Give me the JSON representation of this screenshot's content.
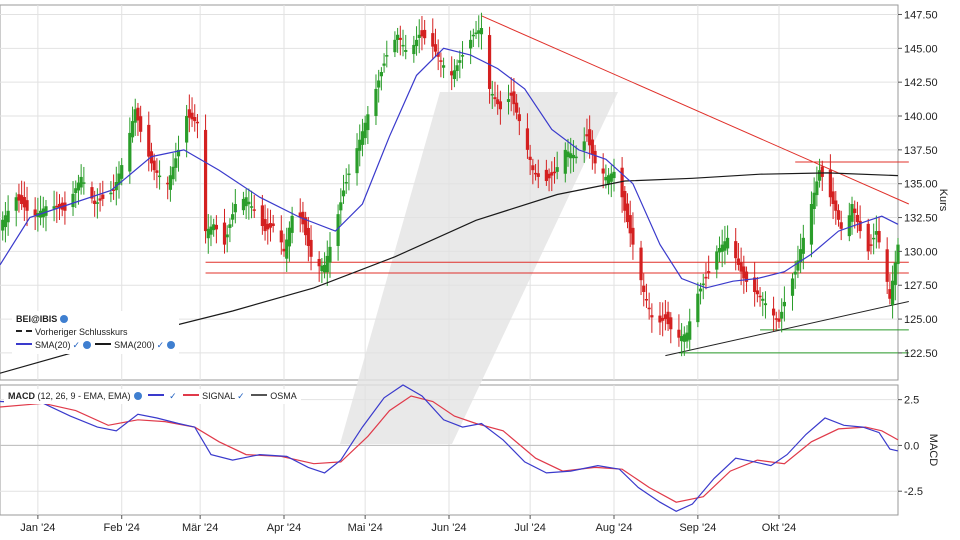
{
  "price_legend": {
    "symbol": "BEI@IBIS",
    "prev_close": "Vorheriger Schlusskurs",
    "sma20": "SMA(20)",
    "sma200": "SMA(200)"
  },
  "macd_legend": {
    "title": "MACD",
    "params": "(12, 26, 9 - EMA, EMA)",
    "signal": "SIGNAL",
    "osma": "OSMA"
  },
  "colors": {
    "up": "#2a9d2a",
    "down": "#d42020",
    "sma20": "#3a3acc",
    "sma200": "#1a1a1a",
    "signal": "#e03a4a",
    "resistance": "#e0302a",
    "support": "#2a9a2a"
  },
  "chart_data": [
    {
      "type": "candlestick",
      "symbol": "BEI@IBIS",
      "ylabel": "Kurs",
      "ylim": [
        120.5,
        148.2
      ],
      "yticks": [
        "122.50",
        "125.00",
        "127.50",
        "130.00",
        "132.50",
        "135.00",
        "137.50",
        "140.00",
        "142.50",
        "145.00",
        "147.50"
      ],
      "x_ticks": [
        "Jan '24",
        "Feb '24",
        "Mär '24",
        "Apr '24",
        "Mai '24",
        "Jun '24",
        "Jul '24",
        "Aug '24",
        "Sep '24",
        "Okt '24"
      ],
      "x_tick_days": [
        8,
        39,
        68,
        99,
        129,
        160,
        190,
        221,
        252,
        282
      ],
      "x_range_days": [
        -6,
        326
      ],
      "close_path": [
        {
          "d": -6,
          "c": 132
        },
        {
          "d": 0,
          "c": 134
        },
        {
          "d": 6,
          "c": 132.5
        },
        {
          "d": 12,
          "c": 133.5
        },
        {
          "d": 18,
          "c": 133
        },
        {
          "d": 24,
          "c": 135.5
        },
        {
          "d": 29,
          "c": 133.5
        },
        {
          "d": 33,
          "c": 134
        },
        {
          "d": 36,
          "c": 134.5
        },
        {
          "d": 40,
          "c": 137
        },
        {
          "d": 44,
          "c": 140.5
        },
        {
          "d": 47,
          "c": 138
        },
        {
          "d": 51,
          "c": 136
        },
        {
          "d": 56,
          "c": 135
        },
        {
          "d": 60,
          "c": 137.5
        },
        {
          "d": 63,
          "c": 140
        },
        {
          "d": 67,
          "c": 139.5
        },
        {
          "d": 70,
          "c": 131.5
        },
        {
          "d": 73,
          "c": 132
        },
        {
          "d": 77,
          "c": 130.5
        },
        {
          "d": 81,
          "c": 133.5
        },
        {
          "d": 85,
          "c": 134
        },
        {
          "d": 88,
          "c": 133
        },
        {
          "d": 92,
          "c": 131.5
        },
        {
          "d": 96,
          "c": 132
        },
        {
          "d": 99,
          "c": 130
        },
        {
          "d": 103,
          "c": 133.5
        },
        {
          "d": 106,
          "c": 132
        },
        {
          "d": 110,
          "c": 128.8
        },
        {
          "d": 114,
          "c": 129
        },
        {
          "d": 117,
          "c": 131
        },
        {
          "d": 121,
          "c": 134.5
        },
        {
          "d": 125,
          "c": 137
        },
        {
          "d": 129,
          "c": 139.5
        },
        {
          "d": 133,
          "c": 142
        },
        {
          "d": 137,
          "c": 144.5
        },
        {
          "d": 141,
          "c": 146
        },
        {
          "d": 145,
          "c": 144.5
        },
        {
          "d": 149,
          "c": 146
        },
        {
          "d": 153,
          "c": 145.5
        },
        {
          "d": 157,
          "c": 144
        },
        {
          "d": 161,
          "c": 143
        },
        {
          "d": 165,
          "c": 144.5
        },
        {
          "d": 169,
          "c": 146
        },
        {
          "d": 172,
          "c": 146.5
        },
        {
          "d": 175,
          "c": 142
        },
        {
          "d": 179,
          "c": 140.5
        },
        {
          "d": 183,
          "c": 141.5
        },
        {
          "d": 187,
          "c": 139
        },
        {
          "d": 191,
          "c": 136
        },
        {
          "d": 195,
          "c": 135
        },
        {
          "d": 199,
          "c": 135.8
        },
        {
          "d": 203,
          "c": 137.5
        },
        {
          "d": 207,
          "c": 137
        },
        {
          "d": 211,
          "c": 138.5
        },
        {
          "d": 214,
          "c": 136.5
        },
        {
          "d": 218,
          "c": 135.5
        },
        {
          "d": 222,
          "c": 136
        },
        {
          "d": 225,
          "c": 133
        },
        {
          "d": 228,
          "c": 130.5
        },
        {
          "d": 232,
          "c": 127
        },
        {
          "d": 236,
          "c": 124.5
        },
        {
          "d": 240,
          "c": 125
        },
        {
          "d": 244,
          "c": 123.5
        },
        {
          "d": 248,
          "c": 124
        },
        {
          "d": 251,
          "c": 126.5
        },
        {
          "d": 255,
          "c": 128
        },
        {
          "d": 259,
          "c": 130
        },
        {
          "d": 263,
          "c": 131
        },
        {
          "d": 266,
          "c": 129.5
        },
        {
          "d": 269,
          "c": 128
        },
        {
          "d": 273,
          "c": 127
        },
        {
          "d": 276,
          "c": 126.5
        },
        {
          "d": 279,
          "c": 125.5
        },
        {
          "d": 282,
          "c": 124.8
        },
        {
          "d": 285,
          "c": 127
        },
        {
          "d": 288,
          "c": 128.5
        },
        {
          "d": 291,
          "c": 131
        },
        {
          "d": 294,
          "c": 133.5
        },
        {
          "d": 297,
          "c": 136
        },
        {
          "d": 300,
          "c": 134.5
        },
        {
          "d": 303,
          "c": 133
        },
        {
          "d": 306,
          "c": 131
        },
        {
          "d": 309,
          "c": 133.5
        },
        {
          "d": 312,
          "c": 131.5
        },
        {
          "d": 315,
          "c": 130
        },
        {
          "d": 318,
          "c": 131.5
        },
        {
          "d": 321,
          "c": 129
        },
        {
          "d": 323,
          "c": 126.5
        },
        {
          "d": 326,
          "c": 130.5
        }
      ],
      "sma20": [
        {
          "d": -6,
          "c": 129
        },
        {
          "d": 5,
          "c": 132.5
        },
        {
          "d": 20,
          "c": 133.5
        },
        {
          "d": 35,
          "c": 134.5
        },
        {
          "d": 50,
          "c": 137
        },
        {
          "d": 62,
          "c": 137.5
        },
        {
          "d": 75,
          "c": 136
        },
        {
          "d": 90,
          "c": 134
        },
        {
          "d": 105,
          "c": 132.5
        },
        {
          "d": 118,
          "c": 131.5
        },
        {
          "d": 128,
          "c": 133.5
        },
        {
          "d": 138,
          "c": 138.5
        },
        {
          "d": 148,
          "c": 143
        },
        {
          "d": 158,
          "c": 145
        },
        {
          "d": 168,
          "c": 144.5
        },
        {
          "d": 178,
          "c": 143.5
        },
        {
          "d": 188,
          "c": 142
        },
        {
          "d": 198,
          "c": 139
        },
        {
          "d": 208,
          "c": 137.5
        },
        {
          "d": 218,
          "c": 136.8
        },
        {
          "d": 228,
          "c": 135
        },
        {
          "d": 238,
          "c": 130.5
        },
        {
          "d": 246,
          "c": 128
        },
        {
          "d": 255,
          "c": 127.3
        },
        {
          "d": 265,
          "c": 127.8
        },
        {
          "d": 274,
          "c": 128
        },
        {
          "d": 284,
          "c": 128.5
        },
        {
          "d": 294,
          "c": 129.8
        },
        {
          "d": 304,
          "c": 131.5
        },
        {
          "d": 314,
          "c": 132.2
        },
        {
          "d": 320,
          "c": 132.6
        },
        {
          "d": 326,
          "c": 132
        }
      ],
      "sma200": [
        {
          "d": -6,
          "c": 121
        },
        {
          "d": 40,
          "c": 123.6
        },
        {
          "d": 80,
          "c": 125.6
        },
        {
          "d": 110,
          "c": 127.3
        },
        {
          "d": 140,
          "c": 129.6
        },
        {
          "d": 170,
          "c": 132.3
        },
        {
          "d": 200,
          "c": 134.2
        },
        {
          "d": 225,
          "c": 135.2
        },
        {
          "d": 250,
          "c": 135.4
        },
        {
          "d": 275,
          "c": 135.7
        },
        {
          "d": 300,
          "c": 135.8
        },
        {
          "d": 326,
          "c": 135.6
        }
      ],
      "trendlines": [
        {
          "role": "resistance",
          "from": [
            172,
            147.4
          ],
          "to": [
            330,
            133.5
          ]
        },
        {
          "role": "support",
          "from": [
            240,
            122.3
          ],
          "to": [
            330,
            126.3
          ]
        }
      ],
      "hlines": [
        {
          "role": "resistance",
          "y": 129.2,
          "from": 70,
          "to": 330
        },
        {
          "role": "resistance",
          "y": 128.4,
          "from": 70,
          "to": 330
        },
        {
          "role": "resistance",
          "y": 136.6,
          "from": 288,
          "to": 330
        },
        {
          "role": "support",
          "y": 124.2,
          "from": 275,
          "to": 330
        },
        {
          "role": "support",
          "y": 122.5,
          "from": 245,
          "to": 330
        }
      ]
    },
    {
      "type": "line",
      "title": "MACD",
      "ylabel": "MACD",
      "ylim": [
        -3.8,
        3.3
      ],
      "yticks": [
        "2.5",
        "0.0",
        "-2.5"
      ],
      "series": [
        {
          "name": "MACD",
          "values": [
            {
              "d": -6,
              "v": 2.4
            },
            {
              "d": 10,
              "v": 2.3
            },
            {
              "d": 20,
              "v": 1.6
            },
            {
              "d": 30,
              "v": 1.0
            },
            {
              "d": 37,
              "v": 0.8
            },
            {
              "d": 45,
              "v": 1.7
            },
            {
              "d": 52,
              "v": 1.5
            },
            {
              "d": 60,
              "v": 1.2
            },
            {
              "d": 66,
              "v": 1.0
            },
            {
              "d": 72,
              "v": -0.5
            },
            {
              "d": 80,
              "v": -0.8
            },
            {
              "d": 90,
              "v": -0.5
            },
            {
              "d": 100,
              "v": -0.6
            },
            {
              "d": 108,
              "v": -1.2
            },
            {
              "d": 114,
              "v": -1.5
            },
            {
              "d": 120,
              "v": -0.8
            },
            {
              "d": 128,
              "v": 1.0
            },
            {
              "d": 136,
              "v": 2.6
            },
            {
              "d": 143,
              "v": 3.3
            },
            {
              "d": 150,
              "v": 2.7
            },
            {
              "d": 158,
              "v": 1.4
            },
            {
              "d": 165,
              "v": 1.0
            },
            {
              "d": 172,
              "v": 1.2
            },
            {
              "d": 180,
              "v": 0.3
            },
            {
              "d": 188,
              "v": -0.9
            },
            {
              "d": 196,
              "v": -1.5
            },
            {
              "d": 205,
              "v": -1.4
            },
            {
              "d": 215,
              "v": -1.1
            },
            {
              "d": 223,
              "v": -1.3
            },
            {
              "d": 230,
              "v": -2.3
            },
            {
              "d": 238,
              "v": -3.1
            },
            {
              "d": 244,
              "v": -3.6
            },
            {
              "d": 250,
              "v": -3.2
            },
            {
              "d": 258,
              "v": -1.8
            },
            {
              "d": 266,
              "v": -0.7
            },
            {
              "d": 273,
              "v": -0.9
            },
            {
              "d": 279,
              "v": -1.1
            },
            {
              "d": 285,
              "v": -0.5
            },
            {
              "d": 292,
              "v": 0.6
            },
            {
              "d": 299,
              "v": 1.5
            },
            {
              "d": 306,
              "v": 1.1
            },
            {
              "d": 313,
              "v": 1.0
            },
            {
              "d": 319,
              "v": 0.7
            },
            {
              "d": 323,
              "v": -0.2
            },
            {
              "d": 326,
              "v": -0.3
            }
          ]
        },
        {
          "name": "SIGNAL",
          "values": [
            {
              "d": -6,
              "v": 2.1
            },
            {
              "d": 10,
              "v": 2.3
            },
            {
              "d": 22,
              "v": 1.9
            },
            {
              "d": 34,
              "v": 1.1
            },
            {
              "d": 45,
              "v": 1.4
            },
            {
              "d": 55,
              "v": 1.3
            },
            {
              "d": 66,
              "v": 1.0
            },
            {
              "d": 75,
              "v": 0.2
            },
            {
              "d": 85,
              "v": -0.5
            },
            {
              "d": 98,
              "v": -0.6
            },
            {
              "d": 110,
              "v": -1.0
            },
            {
              "d": 120,
              "v": -0.9
            },
            {
              "d": 130,
              "v": 0.5
            },
            {
              "d": 138,
              "v": 1.9
            },
            {
              "d": 146,
              "v": 2.7
            },
            {
              "d": 154,
              "v": 2.4
            },
            {
              "d": 162,
              "v": 1.6
            },
            {
              "d": 170,
              "v": 1.2
            },
            {
              "d": 180,
              "v": 0.8
            },
            {
              "d": 192,
              "v": -0.7
            },
            {
              "d": 202,
              "v": -1.4
            },
            {
              "d": 214,
              "v": -1.2
            },
            {
              "d": 224,
              "v": -1.3
            },
            {
              "d": 234,
              "v": -2.3
            },
            {
              "d": 244,
              "v": -3.1
            },
            {
              "d": 254,
              "v": -2.8
            },
            {
              "d": 264,
              "v": -1.4
            },
            {
              "d": 274,
              "v": -0.8
            },
            {
              "d": 284,
              "v": -1.0
            },
            {
              "d": 294,
              "v": 0.2
            },
            {
              "d": 304,
              "v": 0.9
            },
            {
              "d": 314,
              "v": 1.0
            },
            {
              "d": 320,
              "v": 0.8
            },
            {
              "d": 326,
              "v": 0.3
            }
          ]
        }
      ]
    }
  ]
}
